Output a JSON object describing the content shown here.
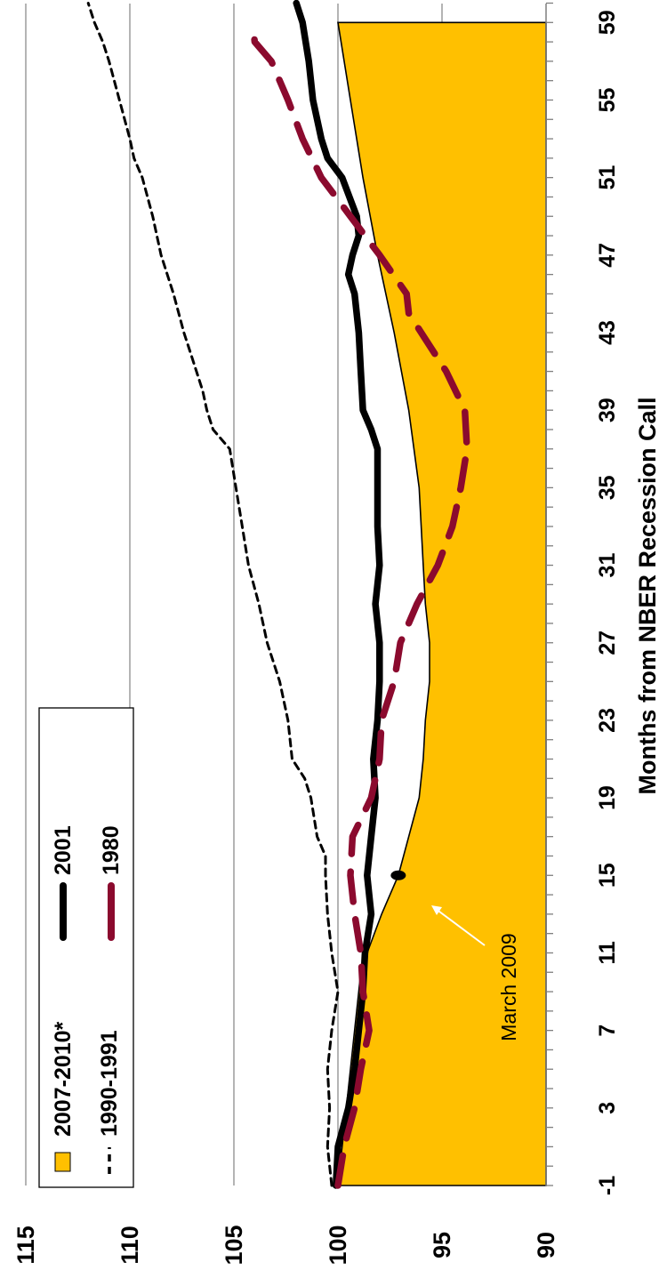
{
  "chart_data": {
    "type": "area",
    "title": "",
    "xlabel": "Months from NBER Recession Call",
    "ylabel": "",
    "x_ticks": [
      -1,
      3,
      7,
      11,
      15,
      19,
      23,
      27,
      31,
      35,
      39,
      43,
      47,
      51,
      55,
      59
    ],
    "y_ticks": [
      90,
      95,
      100,
      105,
      110,
      115
    ],
    "xlim": [
      -1,
      60
    ],
    "ylim": [
      90,
      115
    ],
    "grid": "horizontal",
    "legend_position": "top-left",
    "series": [
      {
        "name": "2007-2010*",
        "style": "filled-area",
        "color": "#FFC000",
        "x": [
          -1,
          3,
          7,
          10,
          11,
          13,
          15,
          17,
          19,
          21,
          23,
          25,
          27,
          29,
          31,
          35,
          39,
          43,
          47,
          51,
          55,
          59
        ],
        "values": [
          100.0,
          99.6,
          99.2,
          98.9,
          98.6,
          97.9,
          97.1,
          96.6,
          96.1,
          95.9,
          95.8,
          95.6,
          95.6,
          95.8,
          95.9,
          96.1,
          96.6,
          97.3,
          98.1,
          98.8,
          99.4,
          100.0
        ]
      },
      {
        "name": "1990-1991",
        "style": "dashed-thin",
        "color": "#000000",
        "x": [
          -1,
          1,
          3,
          5,
          7,
          9,
          11,
          13,
          15,
          16,
          17,
          19,
          20,
          21,
          23,
          25,
          27,
          29,
          31,
          33,
          35,
          37,
          38,
          39,
          40,
          41,
          42,
          43,
          45,
          47,
          49,
          51,
          52,
          53,
          55,
          57,
          58,
          59,
          60
        ],
        "values": [
          100.3,
          100.5,
          100.4,
          100.5,
          100.3,
          100.0,
          100.3,
          100.5,
          100.6,
          100.6,
          101.0,
          101.3,
          101.6,
          102.2,
          102.4,
          102.8,
          103.4,
          103.8,
          104.3,
          104.6,
          104.9,
          105.2,
          106.0,
          106.3,
          106.5,
          106.8,
          107.1,
          107.4,
          107.9,
          108.5,
          108.9,
          109.4,
          109.8,
          110.0,
          110.5,
          111.0,
          111.3,
          111.7,
          112.0
        ]
      },
      {
        "name": "2001",
        "style": "solid-thick",
        "color": "#000000",
        "x": [
          -1,
          1,
          3,
          5,
          7,
          9,
          11,
          13,
          15,
          17,
          19,
          21,
          23,
          25,
          27,
          29,
          31,
          33,
          35,
          37,
          38,
          39,
          41,
          43,
          45,
          46,
          47,
          48,
          49,
          51,
          52,
          53,
          55,
          57,
          59,
          60
        ],
        "values": [
          100.1,
          100.0,
          99.5,
          99.2,
          99.0,
          98.8,
          98.7,
          98.4,
          98.6,
          98.4,
          98.2,
          98.3,
          98.1,
          98.0,
          98.0,
          98.2,
          98.0,
          98.1,
          98.1,
          98.1,
          98.4,
          98.8,
          98.9,
          99.0,
          99.2,
          99.5,
          99.3,
          99.0,
          99.1,
          99.8,
          100.5,
          100.8,
          101.2,
          101.4,
          101.7,
          102.0
        ]
      },
      {
        "name": "1980",
        "style": "long-dash-thick",
        "color": "#8B0A2E",
        "x": [
          -1,
          1,
          3,
          5,
          7,
          9,
          11,
          13,
          15,
          17,
          19,
          21,
          23,
          25,
          27,
          29,
          31,
          33,
          35,
          37,
          39,
          41,
          43,
          44,
          45,
          47,
          49,
          51,
          53,
          55,
          57,
          58,
          59
        ],
        "values": [
          100.0,
          99.7,
          99.2,
          98.9,
          98.5,
          98.8,
          98.9,
          99.2,
          99.4,
          99.3,
          98.4,
          98.0,
          97.9,
          97.3,
          97.0,
          96.2,
          95.2,
          94.5,
          94.1,
          93.8,
          93.9,
          94.8,
          96.0,
          96.6,
          96.7,
          98.0,
          99.4,
          100.8,
          101.7,
          102.4,
          103.2,
          104.0,
          104.1
        ]
      }
    ],
    "annotations": [
      {
        "text": "March 2009",
        "x": 15,
        "y": 97.1
      }
    ]
  }
}
